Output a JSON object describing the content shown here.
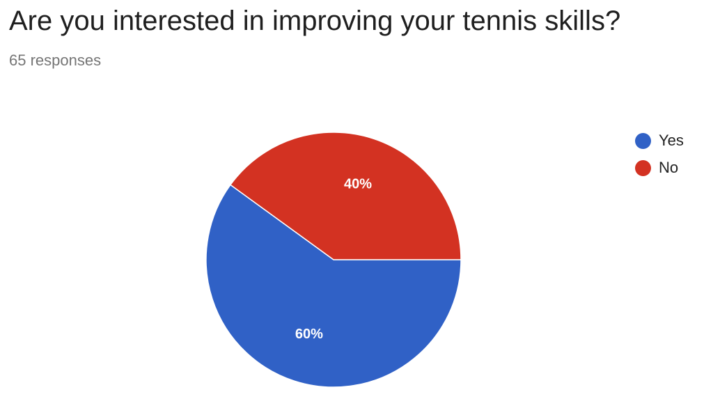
{
  "form_summary": {
    "question": "Are you interested in improving your tennis skills?",
    "response_count_text": "65 responses"
  },
  "chart_data": {
    "type": "pie",
    "title": "Are you interested in improving your tennis skills?",
    "categories": [
      "Yes",
      "No"
    ],
    "values": [
      60,
      40
    ],
    "labels": [
      "60%",
      "40%"
    ],
    "colors": [
      "#3061c6",
      "#d33222"
    ],
    "legend": {
      "placement": "top-right",
      "entries": [
        "Yes",
        "No"
      ]
    }
  }
}
